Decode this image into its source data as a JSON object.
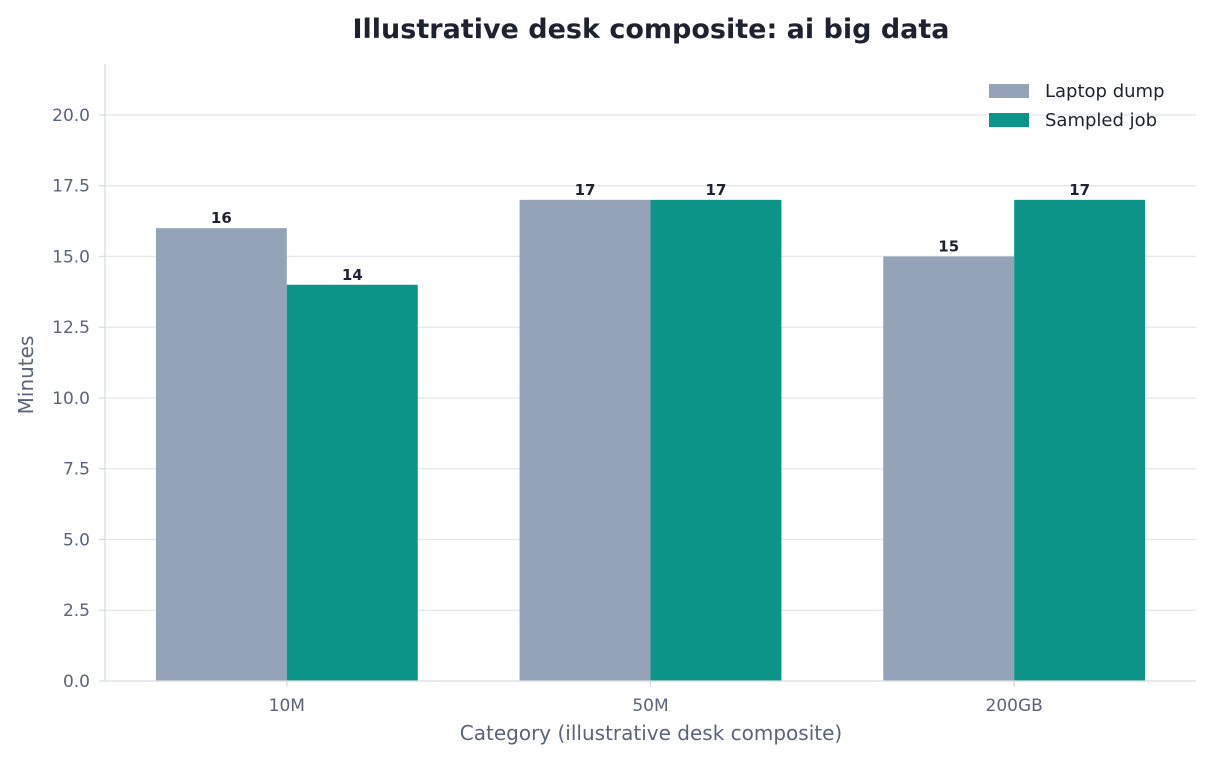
{
  "chart_data": {
    "type": "bar",
    "title": "Illustrative desk composite: ai big data",
    "xlabel": "Category (illustrative desk composite)",
    "ylabel": "Minutes",
    "categories": [
      "10M",
      "50M",
      "200GB"
    ],
    "series": [
      {
        "name": "Laptop dump",
        "values": [
          16,
          17,
          15
        ],
        "color": "#94a3b8"
      },
      {
        "name": "Sampled job",
        "values": [
          14,
          17,
          17
        ],
        "color": "#0d9488"
      }
    ],
    "ylim": [
      0,
      21.8
    ],
    "yticks": [
      "0.0",
      "2.5",
      "5.0",
      "7.5",
      "10.0",
      "12.5",
      "15.0",
      "17.5",
      "20.0"
    ],
    "grid": true,
    "legend_position": "top-right",
    "gridline_color": "#e5e7eb",
    "axis_color": "#d9dde3"
  }
}
